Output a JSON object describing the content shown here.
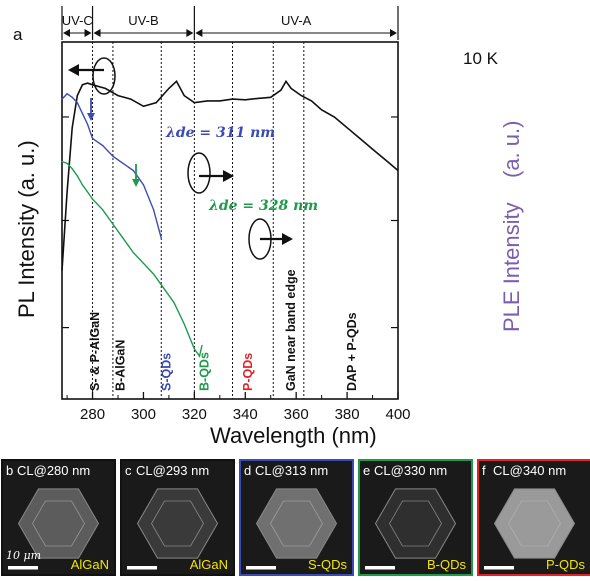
{
  "panel_a_letter": "a",
  "temperature": "10 K",
  "uv_bands": [
    "UV-C",
    "UV-B",
    "UV-A"
  ],
  "y_left_label": "PL Intensity (a. u.)",
  "y_right_label": "PLE Intensity",
  "x_label": "Wavelength (nm)",
  "annotation_blue": "λde = 311 nm",
  "annotation_green": "λde = 328 nm",
  "vertical_labels": [
    {
      "text": "S- & P-AlGaN",
      "color": "#111111"
    },
    {
      "text": "B-AlGaN",
      "color": "#111111"
    },
    {
      "text": "S-QDs",
      "color": "#3a4bb3"
    },
    {
      "text": "B-QDs",
      "color": "#1e9a4a"
    },
    {
      "text": "P-QDs",
      "color": "#e0242a"
    },
    {
      "text": "GaN near band edge",
      "color": "#111111"
    },
    {
      "text": "DAP + P-QDs",
      "color": "#111111"
    }
  ],
  "colors": {
    "pl": "#111111",
    "ple_blue": "#3a4bb3",
    "ple_green": "#1e9a4a",
    "ple_axis": "#7b5fae"
  },
  "chart_data": {
    "type": "line",
    "xlabel": "Wavelength (nm)",
    "ylabel": "PL Intensity (a. u.)",
    "ylabel_right": "PLE Intensity",
    "xlim": [
      268,
      400
    ],
    "x_ticks": [
      280,
      300,
      320,
      340,
      360,
      380,
      400
    ],
    "y_scale": "log",
    "vertical_lines_nm": [
      280,
      288,
      307,
      320,
      335,
      351,
      363
    ],
    "band_boundaries_nm": [
      268,
      280,
      320,
      400
    ],
    "series": [
      {
        "name": "PL",
        "x": [
          268,
          270,
          272,
          274,
          276,
          278,
          280,
          285,
          290,
          295,
          300,
          305,
          310,
          313,
          316,
          320,
          325,
          330,
          335,
          340,
          345,
          350,
          354,
          356,
          358,
          362,
          366,
          370,
          375,
          380,
          385,
          390,
          395,
          400
        ],
        "y": [
          0.36,
          0.58,
          0.76,
          0.85,
          0.88,
          0.885,
          0.88,
          0.87,
          0.85,
          0.84,
          0.82,
          0.83,
          0.87,
          0.89,
          0.85,
          0.83,
          0.835,
          0.835,
          0.84,
          0.838,
          0.842,
          0.845,
          0.865,
          0.89,
          0.87,
          0.85,
          0.835,
          0.81,
          0.79,
          0.76,
          0.73,
          0.7,
          0.67,
          0.64
        ]
      },
      {
        "name": "λde = 311 nm",
        "x": [
          268,
          270,
          272,
          274,
          276,
          278,
          280,
          284,
          288,
          292,
          296,
          300,
          304,
          307
        ],
        "y": [
          0.84,
          0.855,
          0.845,
          0.83,
          0.8,
          0.77,
          0.73,
          0.71,
          0.68,
          0.66,
          0.64,
          0.6,
          0.53,
          0.45
        ]
      },
      {
        "name": "λde = 328 nm",
        "x": [
          268,
          270,
          272,
          274,
          276,
          278,
          280,
          284,
          288,
          292,
          296,
          300,
          304,
          308,
          312,
          316,
          320,
          322,
          323
        ],
        "y": [
          0.665,
          0.66,
          0.645,
          0.625,
          0.6,
          0.58,
          0.56,
          0.53,
          0.49,
          0.45,
          0.41,
          0.38,
          0.35,
          0.31,
          0.27,
          0.21,
          0.14,
          0.12,
          0.15
        ]
      }
    ]
  },
  "cl_panels": [
    {
      "letter": "b",
      "title": "CL@280 nm",
      "label": "AlGaN",
      "border": "#111111"
    },
    {
      "letter": "c",
      "title": "CL@293 nm",
      "label": "AlGaN",
      "border": "#111111"
    },
    {
      "letter": "d",
      "title": "CL@313 nm",
      "label": "S-QDs",
      "border": "#3a4bb3"
    },
    {
      "letter": "e",
      "title": "CL@330 nm",
      "label": "B-QDs",
      "border": "#1e9a4a"
    },
    {
      "letter": "f",
      "title": "CL@340 nm",
      "label": "P-QDs",
      "border": "#e0242a"
    }
  ],
  "scale_bar_text": "10 μm"
}
